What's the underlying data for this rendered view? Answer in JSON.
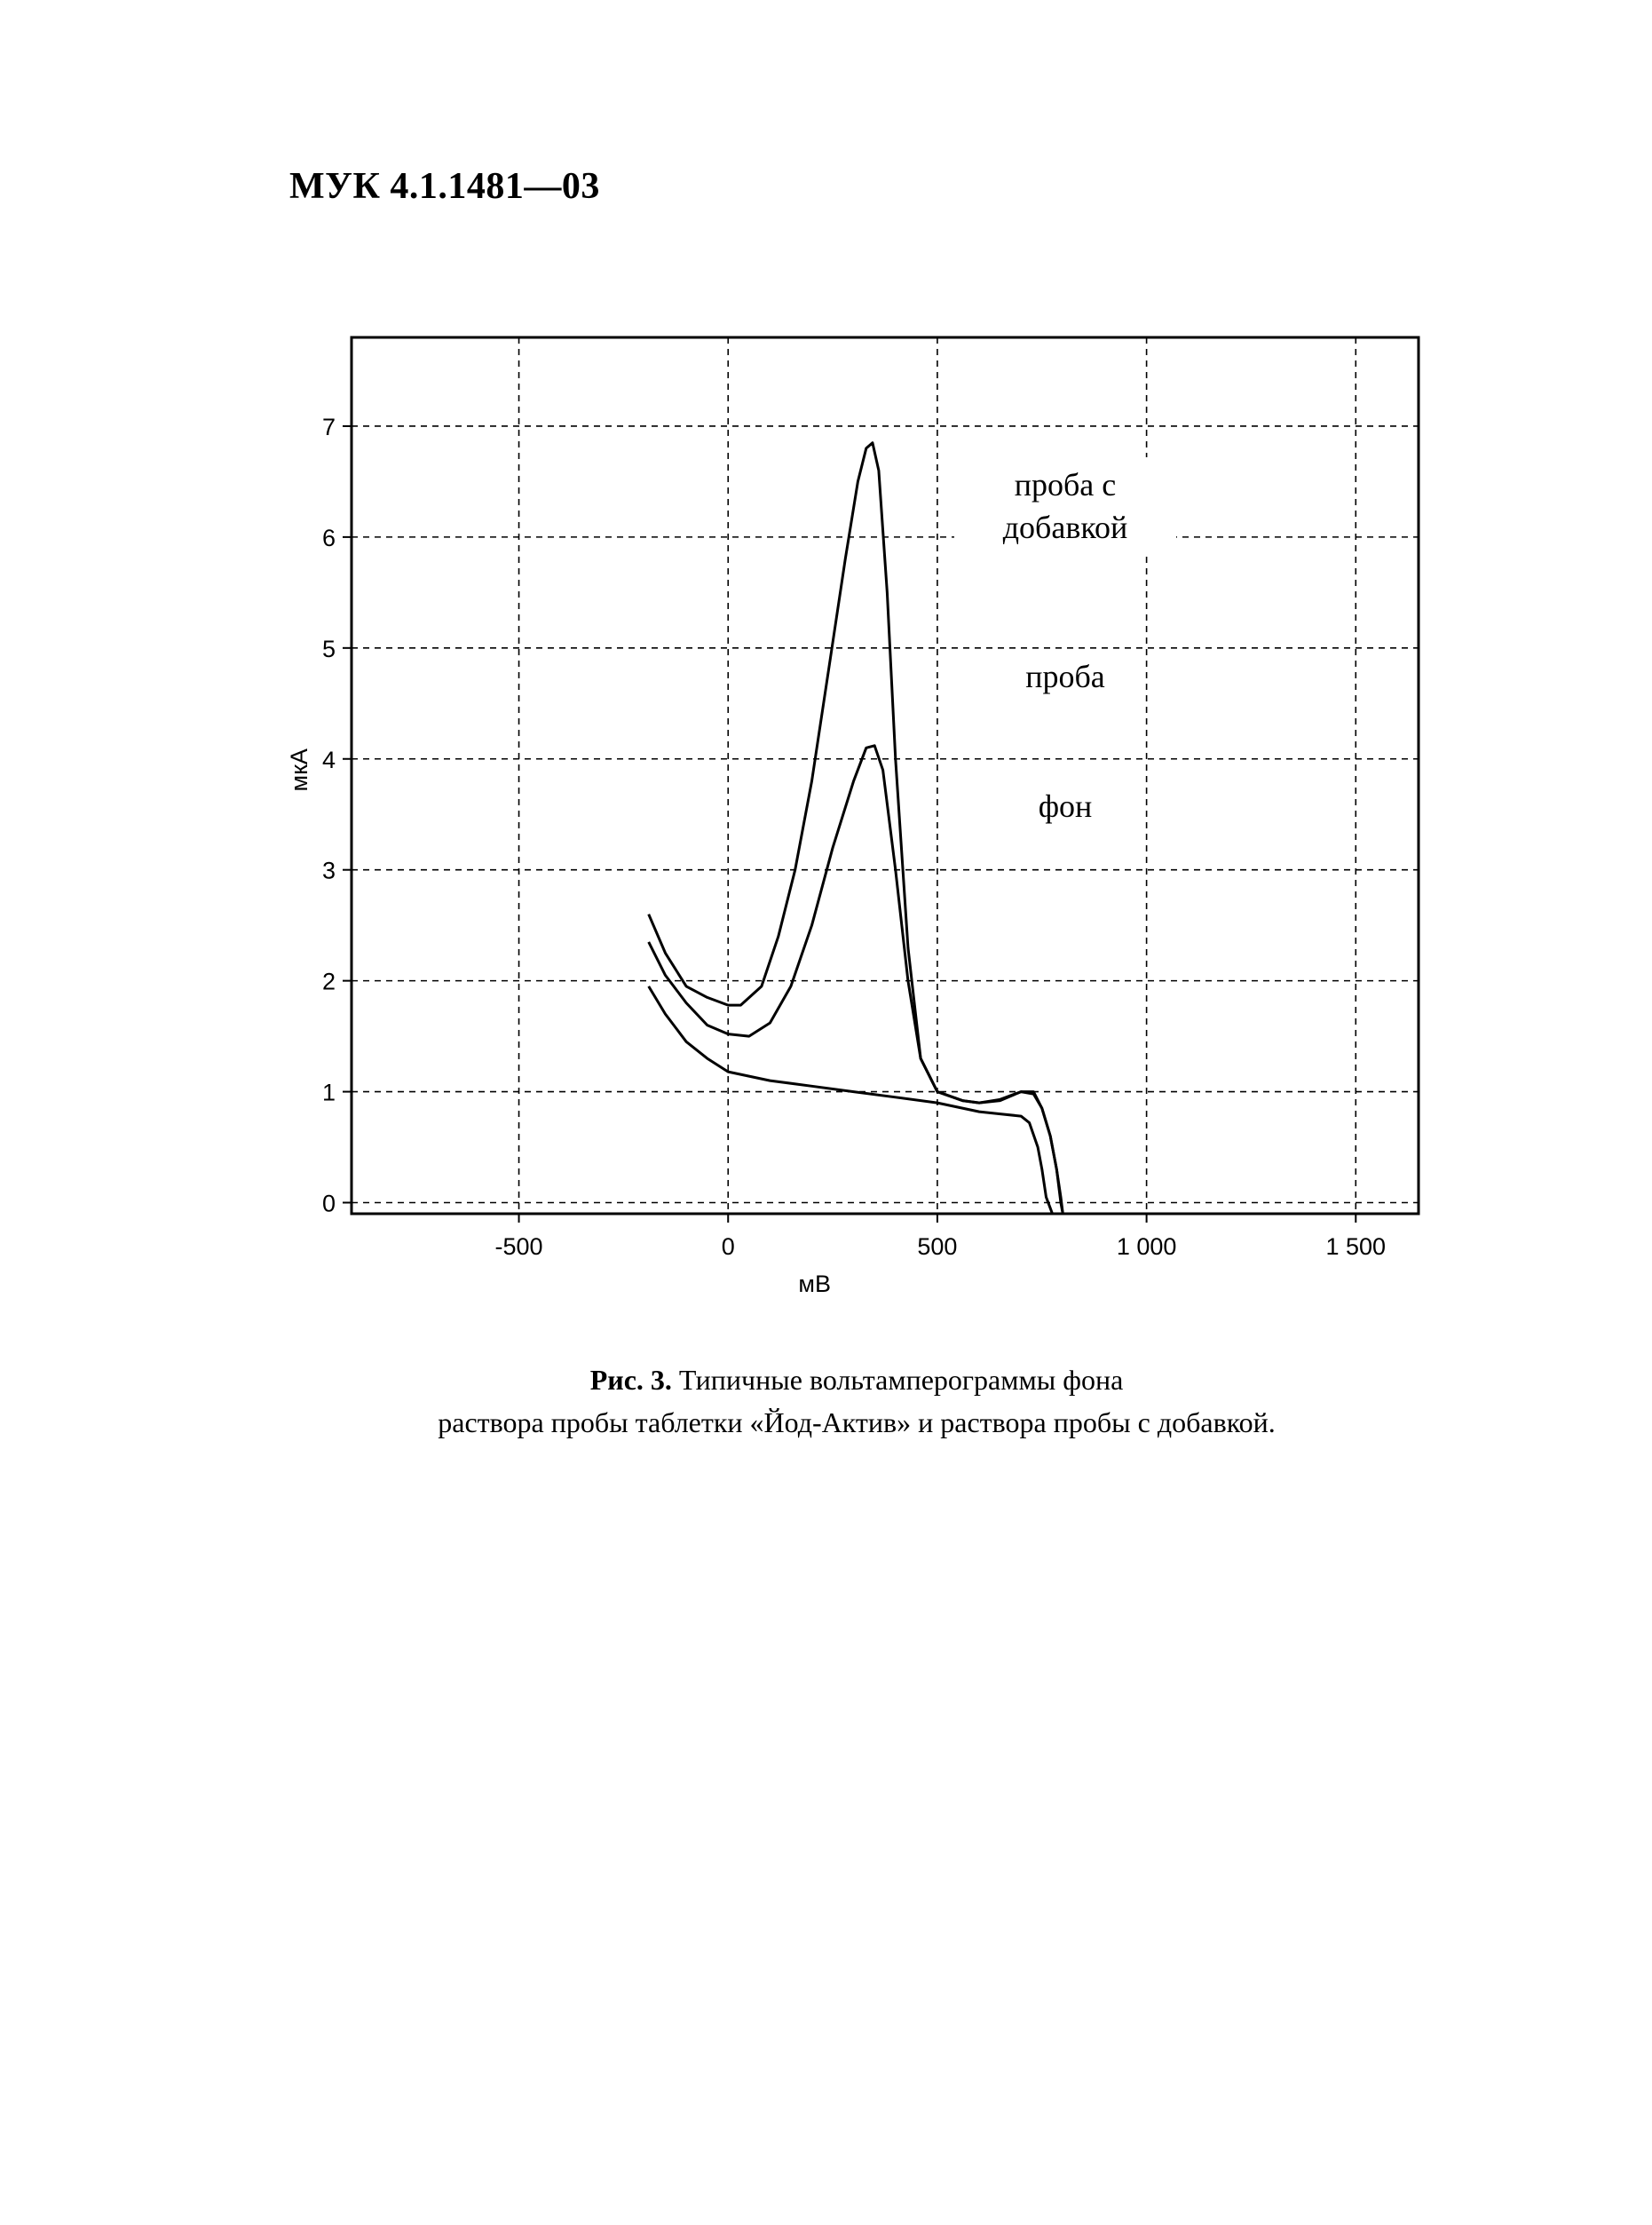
{
  "page": {
    "header": "МУК 4.1.1481—03"
  },
  "figure": {
    "caption_label": "Рис. 3.",
    "caption_line1": "Типичные вольтамперограммы фона",
    "caption_line2": "раствора пробы таблетки «Йод-Актив» и раствора пробы с добавкой."
  },
  "chart_data": {
    "type": "line",
    "xlabel": "мВ",
    "ylabel": "мкА",
    "xlim": [
      -900,
      1650
    ],
    "ylim": [
      -0.1,
      7.8
    ],
    "xticks": [
      -500,
      0,
      500,
      1000,
      1500
    ],
    "xtick_labels": [
      "-500",
      "0",
      "500",
      "1 000",
      "1 500"
    ],
    "yticks": [
      0,
      1,
      2,
      3,
      4,
      5,
      6,
      7
    ],
    "ytick_labels": [
      "0",
      "1",
      "2",
      "3",
      "4",
      "5",
      "6",
      "7"
    ],
    "grid": true,
    "annotations": [
      {
        "lines": [
          "проба с",
          "добавкой"
        ]
      },
      {
        "lines": [
          "проба"
        ]
      },
      {
        "lines": [
          "фон"
        ]
      }
    ],
    "series": [
      {
        "id": "sample-with-addition",
        "color": "#000000",
        "x": [
          -190,
          -150,
          -100,
          -50,
          0,
          30,
          80,
          120,
          160,
          200,
          240,
          280,
          310,
          330,
          345,
          360,
          380,
          400,
          430,
          460,
          500,
          560,
          600,
          650,
          700,
          730,
          750,
          770,
          785,
          795,
          800
        ],
        "y": [
          2.6,
          2.25,
          1.95,
          1.85,
          1.78,
          1.78,
          1.95,
          2.4,
          3.0,
          3.8,
          4.8,
          5.8,
          6.5,
          6.8,
          6.85,
          6.6,
          5.5,
          4.0,
          2.3,
          1.3,
          1.0,
          0.92,
          0.9,
          0.92,
          1.0,
          1.0,
          0.85,
          0.6,
          0.3,
          0.0,
          -0.1
        ]
      },
      {
        "id": "sample",
        "color": "#000000",
        "x": [
          -190,
          -150,
          -100,
          -50,
          0,
          50,
          100,
          150,
          200,
          250,
          300,
          330,
          350,
          370,
          400,
          430,
          460,
          500,
          560,
          600,
          650,
          700,
          730,
          750,
          770,
          785,
          795,
          800
        ],
        "y": [
          2.35,
          2.05,
          1.8,
          1.6,
          1.52,
          1.5,
          1.62,
          1.95,
          2.5,
          3.2,
          3.8,
          4.1,
          4.12,
          3.9,
          3.0,
          2.0,
          1.3,
          1.0,
          0.92,
          0.9,
          0.93,
          1.0,
          0.98,
          0.85,
          0.6,
          0.3,
          0.05,
          -0.1
        ]
      },
      {
        "id": "background",
        "color": "#000000",
        "x": [
          -190,
          -150,
          -100,
          -50,
          0,
          100,
          200,
          300,
          400,
          500,
          600,
          650,
          700,
          720,
          740,
          750,
          760,
          770,
          775
        ],
        "y": [
          1.95,
          1.7,
          1.45,
          1.3,
          1.18,
          1.1,
          1.05,
          1.0,
          0.95,
          0.9,
          0.82,
          0.8,
          0.78,
          0.72,
          0.5,
          0.3,
          0.05,
          -0.05,
          -0.1
        ]
      }
    ]
  }
}
